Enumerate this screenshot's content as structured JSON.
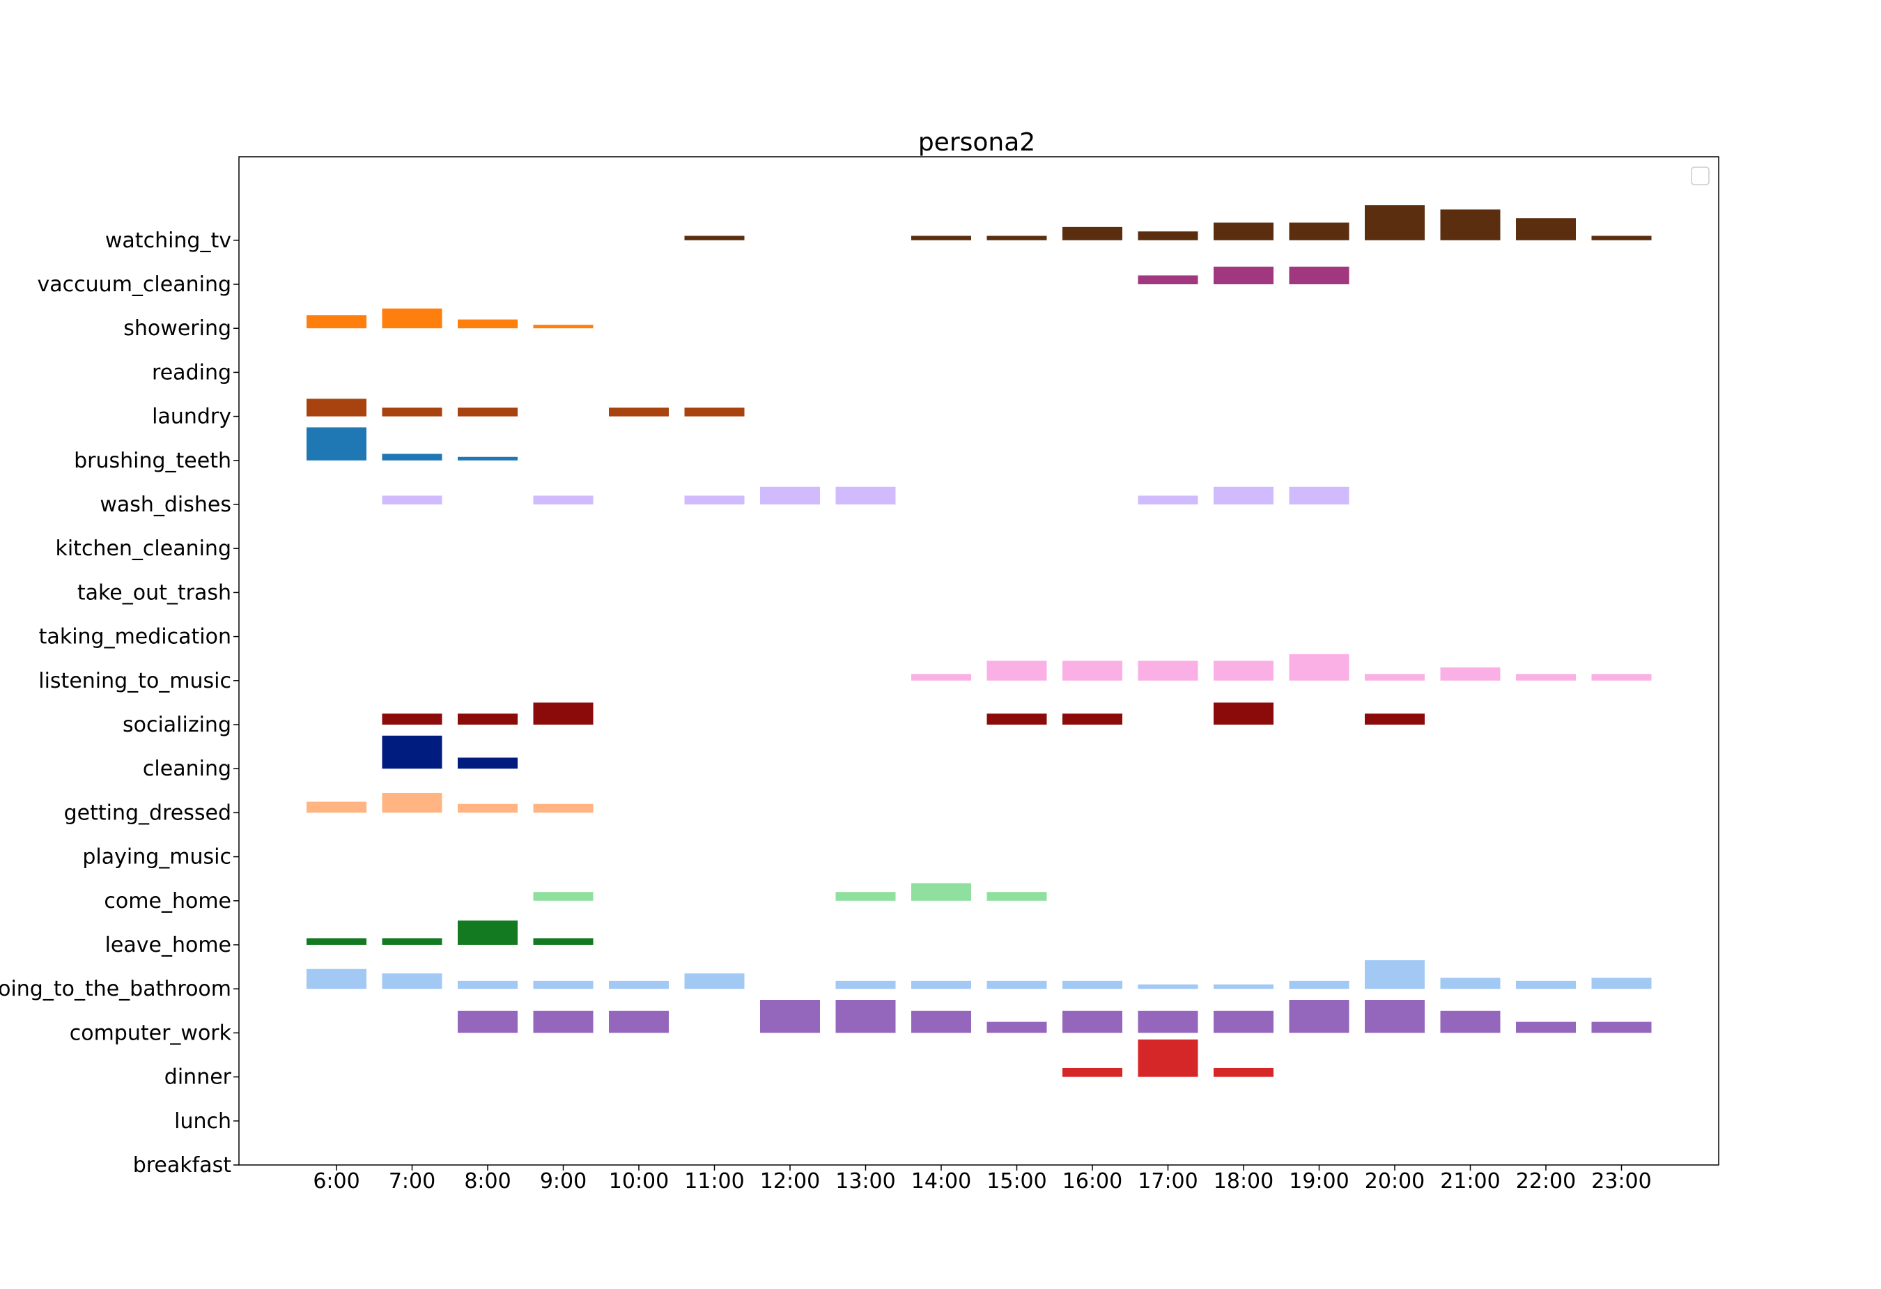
{
  "chart_data": {
    "type": "bar",
    "title": "persona2",
    "xlabel": "",
    "ylabel": "",
    "legend": "upper-right (empty)",
    "grid": false,
    "x_categories": [
      "6:00",
      "7:00",
      "8:00",
      "9:00",
      "10:00",
      "11:00",
      "12:00",
      "13:00",
      "14:00",
      "15:00",
      "16:00",
      "17:00",
      "18:00",
      "19:00",
      "20:00",
      "21:00",
      "22:00",
      "23:00"
    ],
    "y_categories": [
      "breakfast",
      "lunch",
      "dinner",
      "computer_work",
      "going_to_the_bathroom",
      "leave_home",
      "come_home",
      "playing_music",
      "getting_dressed",
      "cleaning",
      "socializing",
      "listening_to_music",
      "taking_medication",
      "take_out_trash",
      "kitchen_cleaning",
      "wash_dishes",
      "brushing_teeth",
      "laundry",
      "reading",
      "showering",
      "vaccuum_cleaning",
      "watching_tv"
    ],
    "series": [
      {
        "activity": "dinner",
        "color": "#d62728",
        "values": [
          0,
          0,
          0,
          0,
          0,
          0,
          0,
          0,
          0,
          0,
          0.2,
          0.85,
          0.2,
          0,
          0,
          0,
          0,
          0
        ]
      },
      {
        "activity": "computer_work",
        "color": "#9467bd",
        "values": [
          0,
          0,
          0.5,
          0.5,
          0.5,
          0,
          0.75,
          0.75,
          0.5,
          0.25,
          0.5,
          0.5,
          0.5,
          0.75,
          0.75,
          0.5,
          0.25,
          0.25
        ]
      },
      {
        "activity": "going_to_the_bathroom",
        "color": "#a1c9f4",
        "values": [
          0.45,
          0.35,
          0.18,
          0.18,
          0.18,
          0.35,
          0,
          0.18,
          0.18,
          0.18,
          0.18,
          0.1,
          0.1,
          0.18,
          0.65,
          0.25,
          0.18,
          0.25
        ]
      },
      {
        "activity": "leave_home",
        "color": "#137a21",
        "values": [
          0.15,
          0.15,
          0.55,
          0.15,
          0,
          0,
          0,
          0,
          0,
          0,
          0,
          0,
          0,
          0,
          0,
          0,
          0,
          0
        ]
      },
      {
        "activity": "come_home",
        "color": "#8fe09f",
        "values": [
          0,
          0,
          0,
          0.2,
          0,
          0,
          0,
          0.2,
          0.4,
          0.2,
          0,
          0,
          0,
          0,
          0,
          0,
          0,
          0
        ]
      },
      {
        "activity": "getting_dressed",
        "color": "#ffb482",
        "values": [
          0.25,
          0.45,
          0.2,
          0.2,
          0,
          0,
          0,
          0,
          0,
          0,
          0,
          0,
          0,
          0,
          0,
          0,
          0,
          0
        ]
      },
      {
        "activity": "cleaning",
        "color": "#001c7f",
        "values": [
          0,
          0.75,
          0.25,
          0,
          0,
          0,
          0,
          0,
          0,
          0,
          0,
          0,
          0,
          0,
          0,
          0,
          0,
          0
        ]
      },
      {
        "activity": "socializing",
        "color": "#8b0a0a",
        "values": [
          0,
          0.25,
          0.25,
          0.5,
          0,
          0,
          0,
          0,
          0,
          0.25,
          0.25,
          0,
          0.5,
          0,
          0.25,
          0,
          0,
          0
        ]
      },
      {
        "activity": "listening_to_music",
        "color": "#fab0e4",
        "values": [
          0,
          0,
          0,
          0,
          0,
          0,
          0,
          0,
          0.15,
          0.45,
          0.45,
          0.45,
          0.45,
          0.6,
          0.15,
          0.3,
          0.15,
          0.15
        ]
      },
      {
        "activity": "wash_dishes",
        "color": "#d0bbff",
        "values": [
          0,
          0.2,
          0,
          0.2,
          0,
          0.2,
          0.4,
          0.4,
          0,
          0,
          0,
          0.2,
          0.4,
          0.4,
          0,
          0,
          0,
          0
        ]
      },
      {
        "activity": "brushing_teeth",
        "color": "#1f77b4",
        "values": [
          0.75,
          0.15,
          0.08,
          0,
          0,
          0,
          0,
          0,
          0,
          0,
          0,
          0,
          0,
          0,
          0,
          0,
          0,
          0
        ]
      },
      {
        "activity": "laundry",
        "color": "#a8420f",
        "values": [
          0.4,
          0.2,
          0.2,
          0,
          0.2,
          0.2,
          0,
          0,
          0,
          0,
          0,
          0,
          0,
          0,
          0,
          0,
          0,
          0
        ],
        "offset_note": ""
      },
      {
        "activity": "showering",
        "color": "#ff7f0e",
        "values": [
          0.3,
          0.45,
          0.2,
          0.08,
          0,
          0,
          0,
          0,
          0,
          0,
          0,
          0,
          0,
          0,
          0,
          0,
          0,
          0
        ]
      },
      {
        "activity": "vaccuum_cleaning",
        "color": "#a1377f",
        "values": [
          0,
          0,
          0,
          0,
          0,
          0,
          0,
          0,
          0,
          0,
          0,
          0.2,
          0.4,
          0.4,
          0,
          0,
          0,
          0
        ]
      },
      {
        "activity": "watching_tv",
        "color": "#5a2e0e",
        "values": [
          0,
          0,
          0,
          0,
          0,
          0.1,
          0,
          0,
          0.1,
          0.1,
          0.3,
          0.2,
          0.4,
          0.4,
          0.8,
          0.7,
          0.5,
          0.1
        ]
      }
    ]
  }
}
